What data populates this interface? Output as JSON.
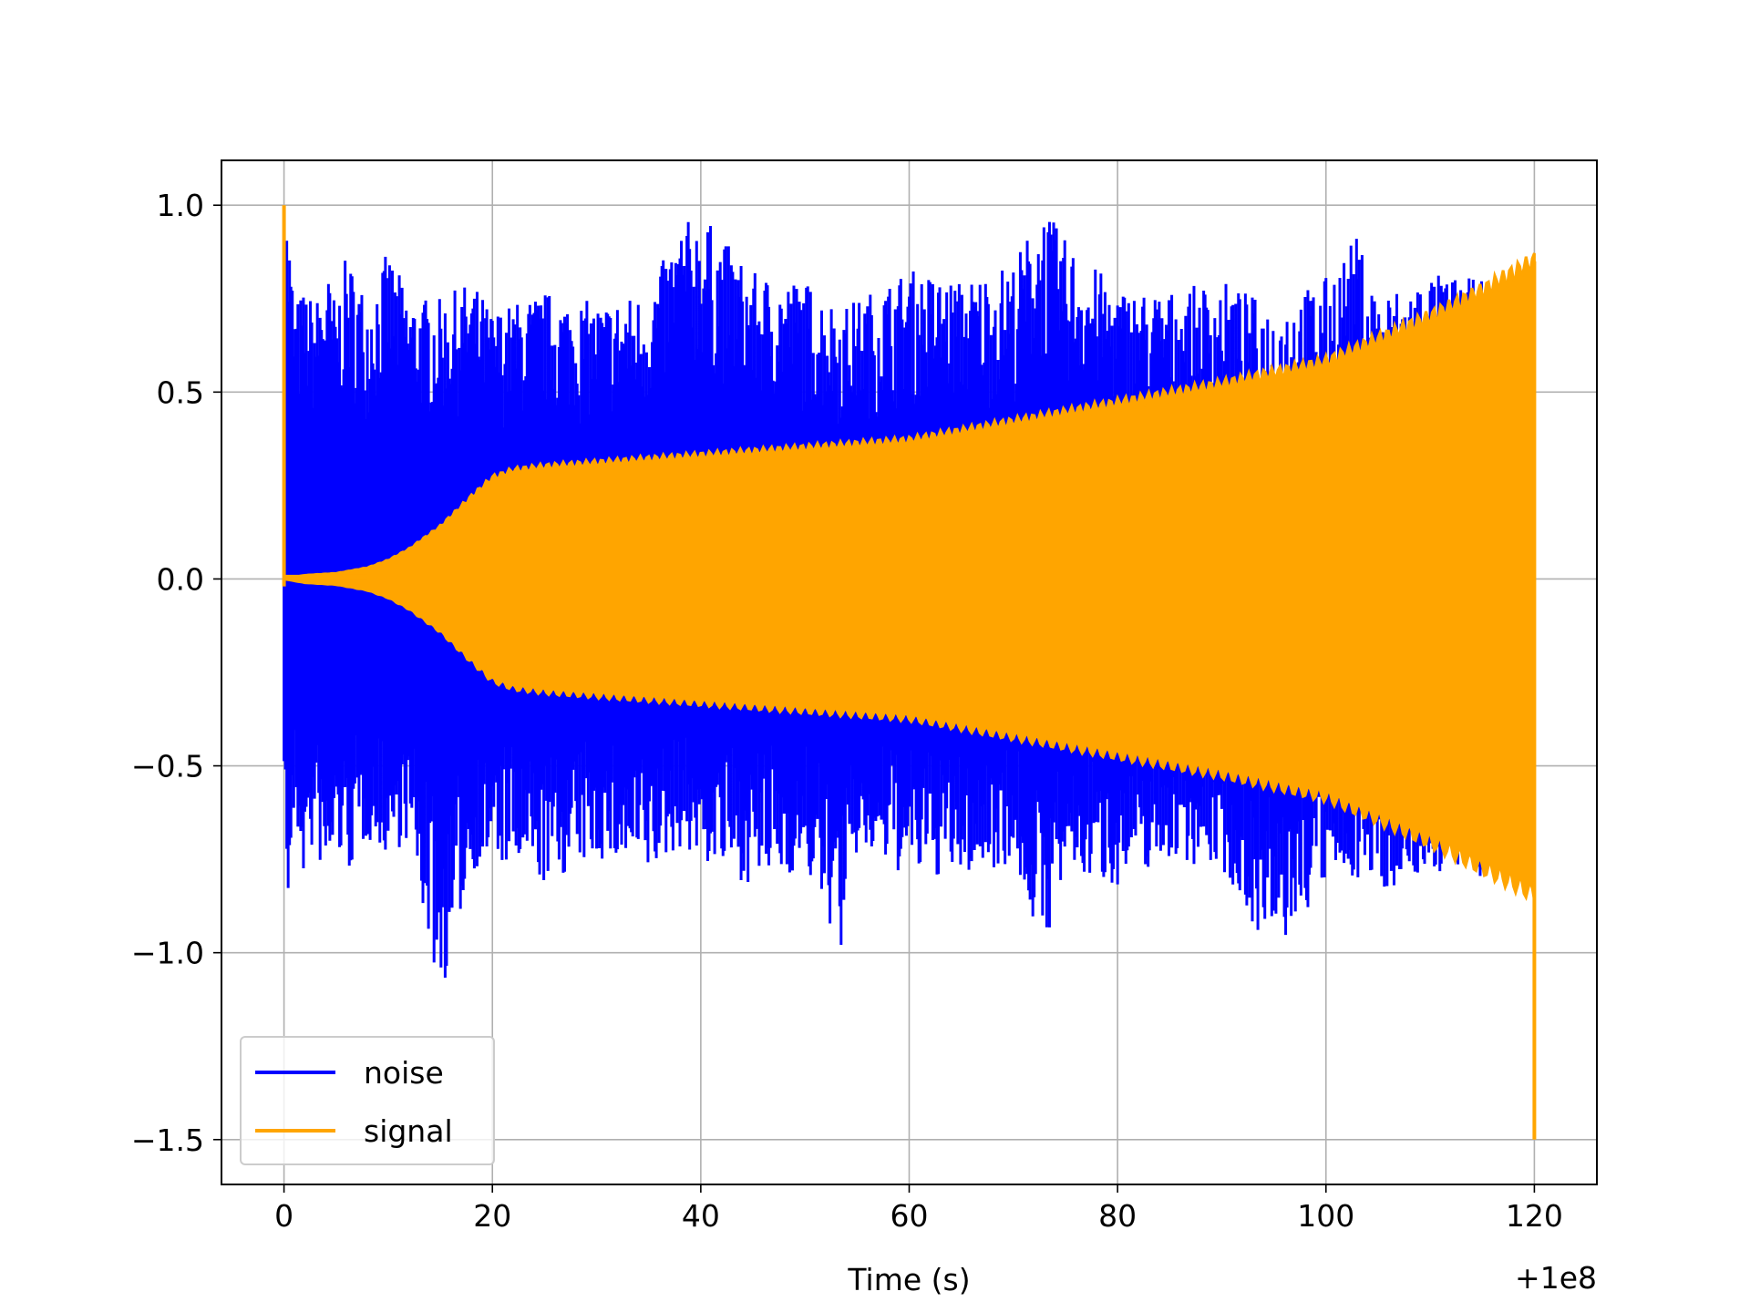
{
  "chart_data": {
    "type": "line",
    "title": "",
    "xlabel": "Time (s)",
    "ylabel": "",
    "x_offset_label": "+1e8",
    "xlim": [
      -6,
      126
    ],
    "ylim": [
      -1.62,
      1.12
    ],
    "x_ticks": [
      0,
      20,
      40,
      60,
      80,
      100,
      120
    ],
    "x_tick_labels": [
      "0",
      "20",
      "40",
      "60",
      "80",
      "100",
      "120"
    ],
    "y_ticks": [
      1.0,
      0.5,
      0.0,
      -0.5,
      -1.0,
      -1.5
    ],
    "y_tick_labels": [
      "1.0",
      "0.5",
      "0.0",
      "−0.5",
      "−1.0",
      "−1.5"
    ],
    "grid": true,
    "legend_position": "lower-left",
    "series": [
      {
        "name": "noise",
        "color": "#0000ff",
        "x": [
          0,
          0.2,
          0.4,
          1,
          2,
          3,
          4,
          5,
          6,
          8,
          10,
          12,
          15,
          18,
          20,
          25,
          30,
          35,
          38,
          40,
          45,
          50,
          53.5,
          55,
          60,
          65,
          70,
          72.8,
          75,
          80,
          85,
          90,
          95,
          100,
          103,
          105,
          110,
          115,
          118,
          120
        ],
        "upper": [
          0.35,
          1.0,
          0.98,
          0.74,
          0.78,
          0.74,
          0.84,
          0.74,
          0.87,
          0.76,
          0.88,
          0.76,
          0.75,
          0.8,
          0.72,
          0.77,
          0.74,
          0.77,
          0.95,
          0.98,
          0.82,
          0.8,
          0.73,
          0.75,
          0.83,
          0.8,
          0.85,
          1.0,
          0.91,
          0.78,
          0.77,
          0.8,
          0.73,
          0.81,
          0.92,
          0.76,
          0.82,
          0.8,
          0.76,
          0.66
        ],
        "lower": [
          -0.5,
          -0.84,
          -0.9,
          -0.65,
          -0.82,
          -0.7,
          -0.85,
          -0.72,
          -0.8,
          -0.7,
          -0.74,
          -0.7,
          -1.13,
          -0.78,
          -0.76,
          -0.82,
          -0.75,
          -0.8,
          -0.72,
          -0.76,
          -0.82,
          -0.78,
          -1.0,
          -0.74,
          -0.8,
          -0.8,
          -0.76,
          -1.0,
          -0.8,
          -0.82,
          -0.75,
          -0.78,
          -1.02,
          -0.82,
          -0.8,
          -0.84,
          -0.79,
          -0.8,
          -0.78,
          -0.4
        ]
      },
      {
        "name": "signal",
        "color": "#ffa500",
        "x": [
          0,
          2,
          5,
          8,
          10,
          12,
          15,
          18,
          20,
          22,
          25,
          30,
          35,
          40,
          50,
          60,
          70,
          80,
          90,
          100,
          110,
          115,
          120
        ],
        "upper": [
          0.0,
          0.01,
          0.015,
          0.03,
          0.05,
          0.08,
          0.14,
          0.22,
          0.27,
          0.29,
          0.3,
          0.31,
          0.32,
          0.33,
          0.35,
          0.37,
          0.42,
          0.47,
          0.52,
          0.58,
          0.7,
          0.77,
          0.85
        ],
        "lower": [
          0.0,
          -0.01,
          -0.015,
          -0.03,
          -0.05,
          -0.08,
          -0.14,
          -0.22,
          -0.27,
          -0.29,
          -0.3,
          -0.31,
          -0.32,
          -0.33,
          -0.35,
          -0.37,
          -0.42,
          -0.47,
          -0.52,
          -0.58,
          -0.7,
          -0.77,
          -0.84
        ],
        "start_spike": 1.0,
        "end_spike": -1.5
      }
    ]
  }
}
